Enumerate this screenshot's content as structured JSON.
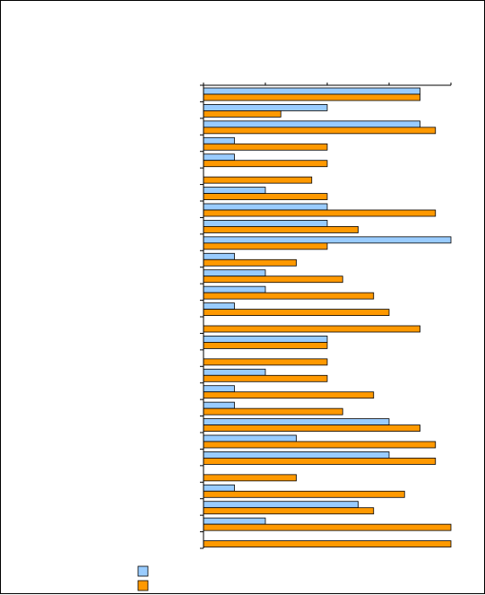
{
  "chart_data": {
    "type": "bar",
    "orientation": "horizontal",
    "title": "",
    "xlabel": "",
    "ylabel": "",
    "categories": [
      "",
      "",
      "",
      "",
      "",
      "",
      "",
      "",
      "",
      "",
      "",
      "",
      "",
      "",
      "",
      "",
      "",
      "",
      "",
      "",
      "",
      "",
      "",
      "",
      "",
      "",
      "",
      ""
    ],
    "xlim": [
      0,
      8
    ],
    "grid": false,
    "legend_position": "bottom-left",
    "series": [
      {
        "name": "",
        "color": "#99ccff",
        "values": [
          7,
          4,
          7,
          1,
          1,
          0,
          2,
          4,
          4,
          8,
          1,
          2,
          2,
          1,
          0,
          4,
          0,
          2,
          1,
          1,
          6,
          3,
          6,
          0,
          1,
          5,
          2,
          0
        ]
      },
      {
        "name": "",
        "color": "#ff9900",
        "values": [
          7,
          2.5,
          7.5,
          4,
          4,
          3.5,
          4,
          7.5,
          5,
          4,
          3,
          4.5,
          5.5,
          6,
          7,
          4,
          4,
          4,
          5.5,
          4.5,
          7,
          7.5,
          7.5,
          3,
          6.5,
          5.5,
          8,
          8
        ]
      }
    ]
  }
}
